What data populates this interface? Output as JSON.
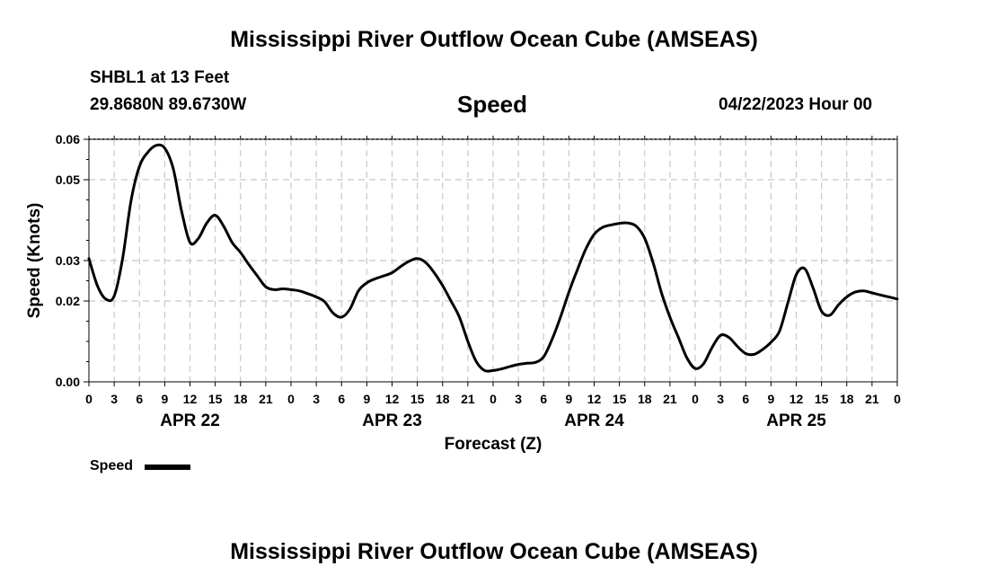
{
  "page": {
    "title_top": "Mississippi River Outflow Ocean Cube (AMSEAS)",
    "title_bottom": "Mississippi River Outflow Ocean Cube (AMSEAS)",
    "station": "SHBL1 at 13 Feet",
    "location": "29.8680N  89.6730W",
    "plot_title": "Speed",
    "timestamp": "04/22/2023 Hour 00",
    "legend_label": "Speed"
  },
  "chart_data": {
    "type": "line",
    "title": "Speed",
    "xlabel": "Forecast (Z)",
    "ylabel": "Speed (Knots)",
    "xlim": [
      0,
      96
    ],
    "ylim": [
      0.0,
      0.06
    ],
    "grid": true,
    "legend": "bottom-left",
    "line_color": "#000000",
    "y_ticks": [
      0.0,
      0.02,
      0.03,
      0.05,
      0.06
    ],
    "y_tick_labels": [
      "0.00",
      "0.02",
      "0.03",
      "0.05",
      "0.06"
    ],
    "x_ticks": [
      0,
      3,
      6,
      9,
      12,
      15,
      18,
      21,
      24,
      27,
      30,
      33,
      36,
      39,
      42,
      45,
      48,
      51,
      54,
      57,
      60,
      63,
      66,
      69,
      72,
      75,
      78,
      81,
      84,
      87,
      90,
      93,
      96
    ],
    "x_tick_labels": [
      "0",
      "3",
      "6",
      "9",
      "12",
      "15",
      "18",
      "21",
      "0",
      "3",
      "6",
      "9",
      "12",
      "15",
      "18",
      "21",
      "0",
      "3",
      "6",
      "9",
      "12",
      "15",
      "18",
      "21",
      "0",
      "3",
      "6",
      "9",
      "12",
      "15",
      "18",
      "21",
      "0"
    ],
    "day_labels": [
      {
        "hour": 12,
        "label": "APR 22"
      },
      {
        "hour": 36,
        "label": "APR 23"
      },
      {
        "hour": 60,
        "label": "APR 24"
      },
      {
        "hour": 84,
        "label": "APR 25"
      }
    ],
    "series": [
      {
        "name": "Speed",
        "x": [
          0,
          1,
          2,
          3,
          4,
          5,
          6,
          7,
          8,
          9,
          10,
          11,
          12,
          13,
          14,
          15,
          16,
          17,
          18,
          19,
          20,
          21,
          22,
          23,
          24,
          25,
          26,
          27,
          28,
          29,
          30,
          31,
          32,
          33,
          34,
          35,
          36,
          37,
          38,
          39,
          40,
          41,
          42,
          43,
          44,
          45,
          46,
          47,
          48,
          49,
          50,
          51,
          52,
          53,
          54,
          55,
          56,
          57,
          58,
          59,
          60,
          61,
          62,
          63,
          64,
          65,
          66,
          67,
          68,
          69,
          70,
          71,
          72,
          73,
          74,
          75,
          76,
          77,
          78,
          79,
          80,
          81,
          82,
          83,
          84,
          85,
          86,
          87,
          88,
          89,
          90,
          91,
          92,
          93,
          94,
          95,
          96
        ],
        "values": [
          0.0305,
          0.0238,
          0.0205,
          0.0212,
          0.0305,
          0.0448,
          0.0533,
          0.0568,
          0.0585,
          0.0578,
          0.0528,
          0.0423,
          0.0345,
          0.0355,
          0.0393,
          0.0412,
          0.0385,
          0.0345,
          0.032,
          0.029,
          0.0262,
          0.0235,
          0.0228,
          0.023,
          0.0228,
          0.0225,
          0.0218,
          0.021,
          0.0198,
          0.017,
          0.016,
          0.018,
          0.0225,
          0.0245,
          0.0255,
          0.0262,
          0.027,
          0.0285,
          0.0298,
          0.0305,
          0.0295,
          0.027,
          0.0238,
          0.02,
          0.016,
          0.01,
          0.005,
          0.0028,
          0.0028,
          0.0032,
          0.0038,
          0.0043,
          0.0046,
          0.0048,
          0.0062,
          0.0105,
          0.016,
          0.0222,
          0.0277,
          0.0328,
          0.0365,
          0.0382,
          0.0388,
          0.0392,
          0.0393,
          0.0385,
          0.0355,
          0.0295,
          0.022,
          0.016,
          0.011,
          0.006,
          0.0033,
          0.0045,
          0.0085,
          0.0115,
          0.011,
          0.0088,
          0.007,
          0.0068,
          0.008,
          0.0098,
          0.0125,
          0.0195,
          0.0265,
          0.028,
          0.0232,
          0.0175,
          0.0165,
          0.019,
          0.021,
          0.0222,
          0.0225,
          0.022,
          0.0215,
          0.021,
          0.0205
        ]
      }
    ]
  }
}
